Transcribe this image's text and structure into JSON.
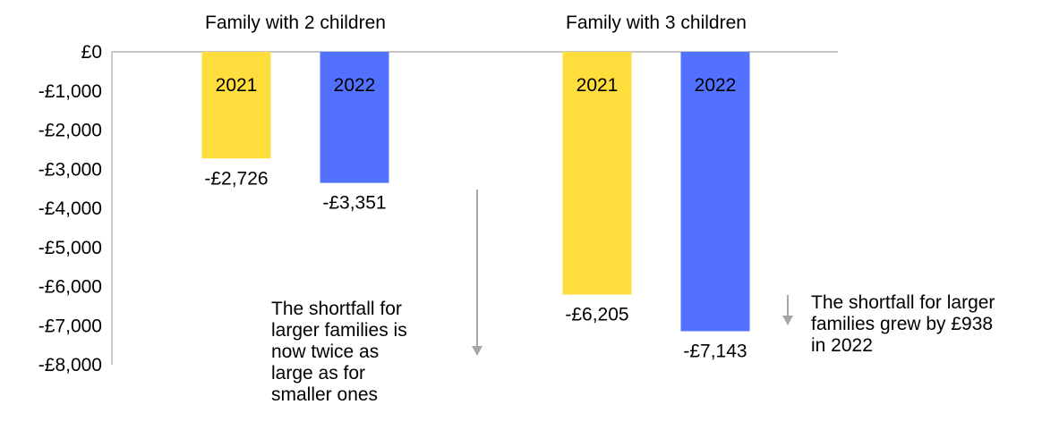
{
  "chart_data": {
    "type": "bar",
    "groups": [
      {
        "label": "Family with 2 children",
        "bars": [
          {
            "year": "2021",
            "value": -2726,
            "value_label": "-£2,726"
          },
          {
            "year": "2022",
            "value": -3351,
            "value_label": "-£3,351"
          }
        ]
      },
      {
        "label": "Family with 3 children",
        "bars": [
          {
            "year": "2021",
            "value": -6205,
            "value_label": "-£6,205"
          },
          {
            "year": "2022",
            "value": -7143,
            "value_label": "-£7,143"
          }
        ]
      }
    ],
    "y_ticks": [
      "£0",
      "-£1,000",
      "-£2,000",
      "-£3,000",
      "-£4,000",
      "-£5,000",
      "-£6,000",
      "-£7,000",
      "-£8,000"
    ],
    "ylim": [
      -8000,
      0
    ],
    "grid": false,
    "colors": {
      "2021": "#FFDD3C",
      "2022": "#5271FF",
      "arrow": "#A6A6A6",
      "axis": "#A6A6A6"
    }
  },
  "annotations": {
    "left_note": "The shortfall for\nlarger families is\nnow twice as\nlarge as for\nsmaller ones",
    "right_note": "The shortfall for larger\nfamilies grew by £938\nin 2022"
  }
}
